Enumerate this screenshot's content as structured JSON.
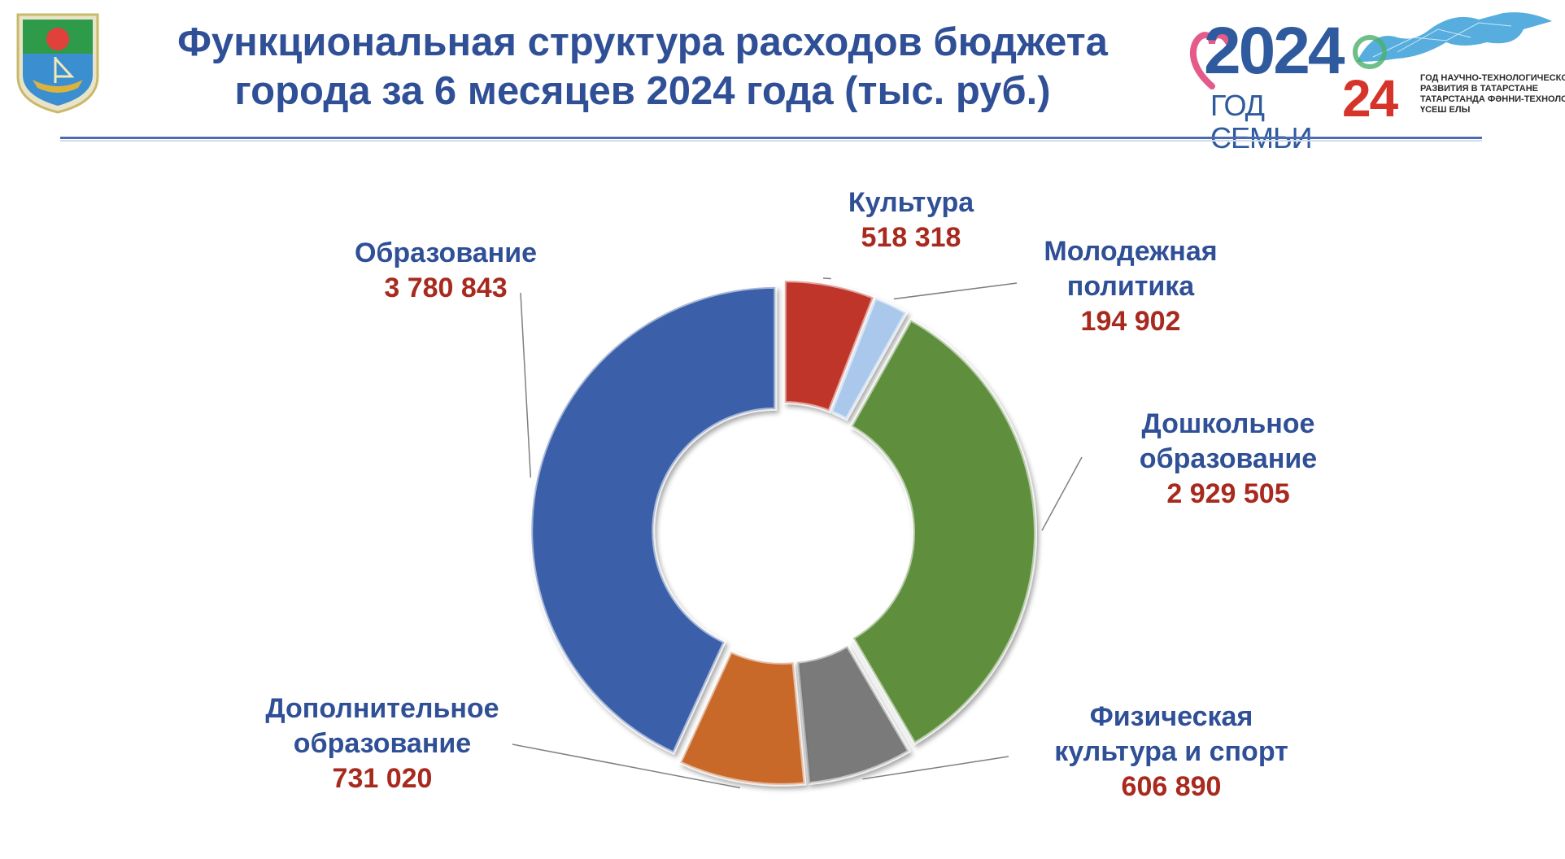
{
  "header": {
    "title_line1": "Функциональная структура расходов бюджета",
    "title_line2": "города за 6 месяцев 2024 года (тыс. руб.)"
  },
  "logos": {
    "family_year": {
      "number": "2024",
      "caption": "ГОД СЕМЬИ"
    },
    "tech_year": {
      "number": "24",
      "lines": [
        "ГОД НАУЧНО-ТЕХНОЛОГИЧЕСКОГО",
        "РАЗВИТИЯ В ТАТАРСТАНЕ",
        "ТАТАРСТАНДА ФӘННИ-ТЕХНОЛОГИК",
        "ҮСЕШ ЕЛЫ"
      ]
    }
  },
  "chart_data": {
    "type": "pie",
    "subtype": "doughnut",
    "units": "тыс. руб.",
    "slices": [
      {
        "name_lines": [
          "Культура"
        ],
        "value": 518318,
        "label": "518 318",
        "color": "#c0362c"
      },
      {
        "name_lines": [
          "Молодежная",
          "политика"
        ],
        "value": 194902,
        "label": "194 902",
        "color": "#a9c8ec"
      },
      {
        "name_lines": [
          "Дошкольное",
          "образование"
        ],
        "value": 2929505,
        "label": "2 929 505",
        "color": "#5e8e3e"
      },
      {
        "name_lines": [
          "Физическая",
          "культура и спорт"
        ],
        "value": 606890,
        "label": "606 890",
        "color": "#7a7a7a"
      },
      {
        "name_lines": [
          "Дополнительное",
          "образование"
        ],
        "value": 731020,
        "label": "731 020",
        "color": "#c8692c"
      },
      {
        "name_lines": [
          "Образование"
        ],
        "value": 3780843,
        "label": "3 780 843",
        "color": "#3a5fa8"
      }
    ]
  }
}
